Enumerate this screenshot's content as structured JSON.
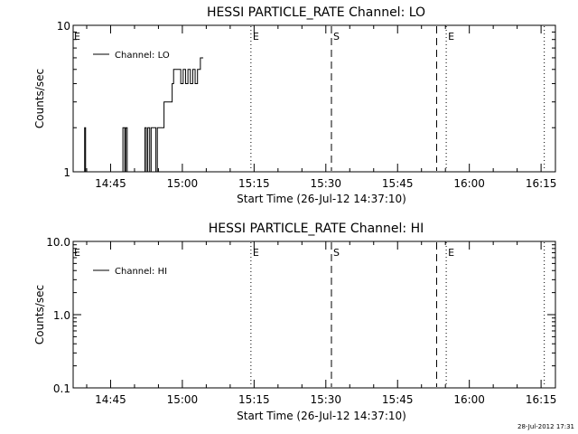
{
  "footer": {
    "timestamp": "28-Jul-2012 17:31"
  },
  "chart_data": [
    {
      "type": "line",
      "title": "HESSI PARTICLE_RATE Channel: LO",
      "xlabel": "Start Time (26-Jul-12 14:37:10)",
      "ylabel": "Counts/sec",
      "yscale": "log",
      "ylim": [
        1,
        10
      ],
      "y_tick_labels": [
        "1",
        "10"
      ],
      "x_tick_labels": [
        "14:45",
        "15:00",
        "15:15",
        "15:30",
        "15:45",
        "16:00",
        "16:15"
      ],
      "legend": {
        "label": "Channel: LO",
        "placement": "top-left"
      },
      "markers": [
        {
          "label": "E",
          "x_min": 37.17,
          "style": "dotted"
        },
        {
          "label": "S",
          "x_min": 54.0,
          "style": "dashed"
        },
        {
          "label": "",
          "x_min": 76.0,
          "style": "dashed"
        },
        {
          "label": "E",
          "x_min": 78.0,
          "style": "dotted"
        },
        {
          "label": "",
          "x_min": 98.5,
          "style": "dotted"
        }
      ],
      "series": [
        {
          "name": "Channel: LO",
          "x_min": [
            0.0,
            1.3,
            2.0,
            2.4,
            2.6,
            3.0,
            3.3,
            5.5,
            9.0,
            10.4,
            10.8,
            11.0,
            11.3,
            12.5,
            14.5,
            15.0,
            15.3,
            15.6,
            16.0,
            16.3,
            17.0,
            17.3,
            17.6,
            18.0,
            18.4,
            19.0,
            19.3,
            19.7,
            20.0,
            20.7,
            21.0,
            21.4,
            22.0,
            22.5,
            23.0,
            23.5,
            24.0,
            24.5,
            25.0,
            25.5,
            26.0,
            26.6,
            27.2
          ],
          "counts": [
            1,
            1,
            1,
            2,
            1,
            1,
            1,
            1,
            1,
            2,
            1,
            2,
            1,
            1,
            1,
            2,
            1,
            2,
            1,
            2,
            2,
            1,
            2,
            2,
            2,
            3,
            3,
            3,
            3,
            4,
            5,
            5,
            5,
            4,
            5,
            4,
            5,
            4,
            5,
            4,
            5,
            6,
            6
          ]
        }
      ]
    },
    {
      "type": "line",
      "title": "HESSI PARTICLE_RATE Channel: HI",
      "xlabel": "Start Time (26-Jul-12 14:37:10)",
      "ylabel": "Counts/sec",
      "yscale": "log",
      "ylim": [
        0.1,
        10
      ],
      "y_tick_labels": [
        "0.1",
        "1.0",
        "10.0"
      ],
      "x_tick_labels": [
        "14:45",
        "15:00",
        "15:15",
        "15:30",
        "15:45",
        "16:00",
        "16:15"
      ],
      "legend": {
        "label": "Channel: HI",
        "placement": "top-left"
      },
      "markers": [
        {
          "label": "E",
          "x_min": 37.17,
          "style": "dotted"
        },
        {
          "label": "S",
          "x_min": 54.0,
          "style": "dashed"
        },
        {
          "label": "",
          "x_min": 76.0,
          "style": "dashed"
        },
        {
          "label": "E",
          "x_min": 78.0,
          "style": "dotted"
        },
        {
          "label": "",
          "x_min": 98.5,
          "style": "dotted"
        }
      ],
      "series": [
        {
          "name": "Channel: HI",
          "x_min": [],
          "counts": []
        }
      ]
    }
  ]
}
